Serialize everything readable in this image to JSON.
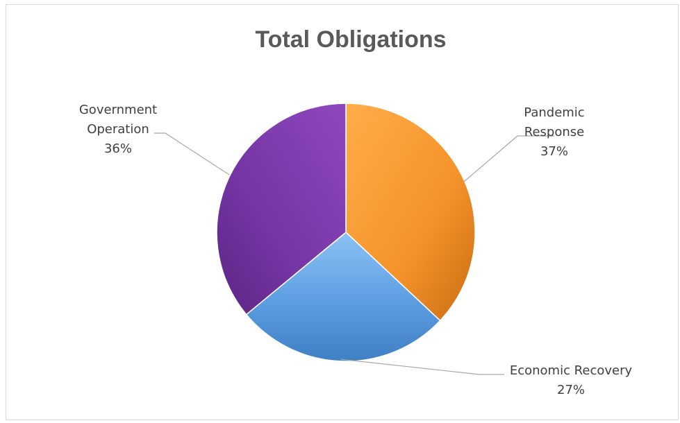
{
  "chart_data": {
    "type": "pie",
    "title": "Total Obligations",
    "slices": [
      {
        "name": "Pandemic Response",
        "label_lines": [
          "Pandemic",
          "Response"
        ],
        "value": 37,
        "percent_label": "37%",
        "color": "#f5922a"
      },
      {
        "name": "Economic Recovery",
        "label_lines": [
          "Economic Recovery"
        ],
        "value": 27,
        "percent_label": "27%",
        "color": "#5b9de0"
      },
      {
        "name": "Government Operation",
        "label_lines": [
          "Government",
          "Operation"
        ],
        "value": 36,
        "percent_label": "36%",
        "color": "#7b3aa8"
      }
    ],
    "start_angle_deg": 0,
    "direction": "clockwise"
  }
}
